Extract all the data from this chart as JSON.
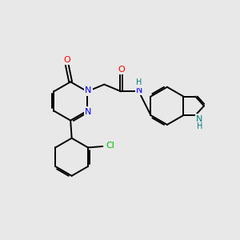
{
  "background_color": "#e8e8e8",
  "bond_color": "#000000",
  "atom_colors": {
    "O": "#ff0000",
    "N": "#0000ff",
    "Cl": "#00bb00",
    "NH": "#008080",
    "C": "#000000"
  },
  "figsize": [
    3.0,
    3.0
  ],
  "dpi": 100
}
